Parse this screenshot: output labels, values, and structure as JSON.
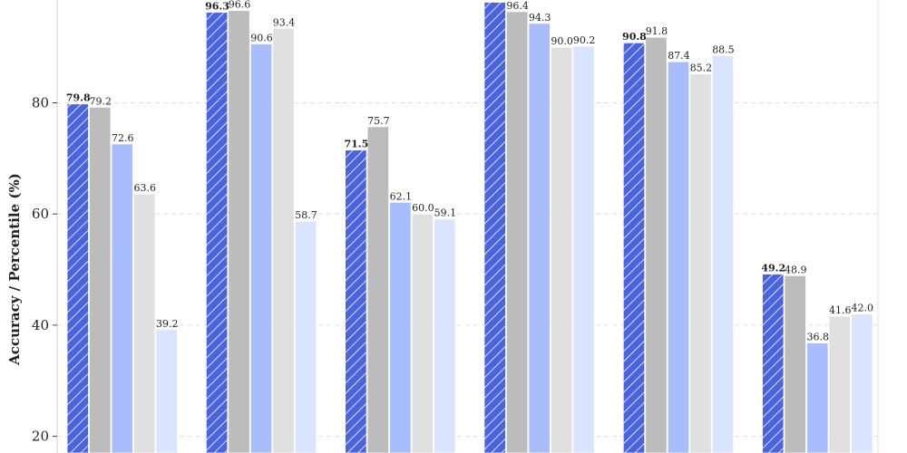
{
  "chart_data": {
    "type": "bar",
    "ylabel": "Accuracy / Percentile (%)",
    "ylim": [
      17,
      98.5
    ],
    "yticks": [
      20,
      40,
      60,
      80
    ],
    "grid": true,
    "categories": [
      "",
      "",
      "",
      "",
      "",
      ""
    ],
    "series": [
      {
        "color": "#4a63e0",
        "hatch": true,
        "bold_labels": true,
        "values": [
          79.8,
          96.3,
          71.5,
          98.1,
          90.8,
          49.2
        ],
        "labels": [
          "79.8",
          "96.3",
          "71.5",
          "",
          "90.8",
          "49.2"
        ]
      },
      {
        "color": "#bcbcbc",
        "values": [
          79.2,
          96.6,
          75.7,
          96.4,
          91.8,
          48.9
        ],
        "labels": [
          "79.2",
          "96.6",
          "75.7",
          "96.4",
          "91.8",
          "48.9"
        ]
      },
      {
        "color": "#a7bdfc",
        "values": [
          72.6,
          90.6,
          62.1,
          94.3,
          87.4,
          36.8
        ],
        "labels": [
          "72.6",
          "90.6",
          "62.1",
          "94.3",
          "87.4",
          "36.8"
        ]
      },
      {
        "color": "#e0e0e0",
        "values": [
          63.6,
          93.4,
          60.0,
          90.0,
          85.2,
          41.6
        ],
        "labels": [
          "63.6",
          "93.4",
          "60.0",
          "90.0",
          "85.2",
          "41.6"
        ]
      },
      {
        "color": "#d9e5ff",
        "values": [
          39.2,
          58.7,
          59.1,
          90.2,
          88.5,
          42.0
        ],
        "labels": [
          "39.2",
          "58.7",
          "59.1",
          "90.2",
          "88.5",
          "42.0"
        ]
      }
    ]
  }
}
